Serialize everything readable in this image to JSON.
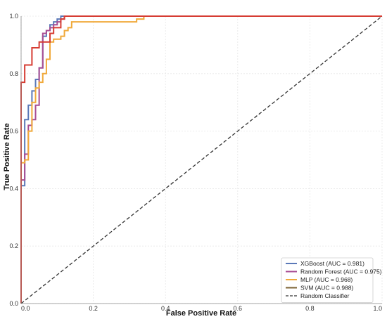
{
  "chart_data": {
    "type": "line",
    "title": "",
    "xlabel": "False Positive Rate",
    "ylabel": "True Positive Rate",
    "xlim": [
      0,
      1
    ],
    "ylim": [
      0,
      1
    ],
    "xticks": [
      "0.0",
      "0.2",
      "0.4",
      "0.6",
      "0.8",
      "1.0"
    ],
    "yticks": [
      "0.0",
      "0.2",
      "0.4",
      "0.6",
      "0.8",
      "1.0"
    ],
    "grid": true,
    "legend_position": "bottom-right",
    "series": [
      {
        "name": "XGBoost (AUC = 0.981)",
        "color": "#5b79b8",
        "points": [
          [
            0,
            0
          ],
          [
            0,
            0.41
          ],
          [
            0.01,
            0.41
          ],
          [
            0.01,
            0.64
          ],
          [
            0.02,
            0.64
          ],
          [
            0.02,
            0.69
          ],
          [
            0.03,
            0.69
          ],
          [
            0.03,
            0.74
          ],
          [
            0.04,
            0.74
          ],
          [
            0.04,
            0.78
          ],
          [
            0.05,
            0.78
          ],
          [
            0.05,
            0.82
          ],
          [
            0.06,
            0.82
          ],
          [
            0.06,
            0.93
          ],
          [
            0.07,
            0.93
          ],
          [
            0.07,
            0.95
          ],
          [
            0.08,
            0.95
          ],
          [
            0.08,
            0.97
          ],
          [
            0.09,
            0.97
          ],
          [
            0.09,
            0.98
          ],
          [
            0.1,
            0.98
          ],
          [
            0.1,
            0.99
          ],
          [
            0.11,
            0.99
          ],
          [
            0.11,
            1.0
          ],
          [
            1.0,
            1.0
          ]
        ]
      },
      {
        "name": "Random Forest (AUC = 0.975)",
        "color": "#a84d93",
        "points": [
          [
            0,
            0
          ],
          [
            0,
            0.43
          ],
          [
            0.01,
            0.43
          ],
          [
            0.01,
            0.52
          ],
          [
            0.02,
            0.52
          ],
          [
            0.02,
            0.62
          ],
          [
            0.03,
            0.62
          ],
          [
            0.03,
            0.64
          ],
          [
            0.04,
            0.64
          ],
          [
            0.04,
            0.69
          ],
          [
            0.05,
            0.69
          ],
          [
            0.05,
            0.82
          ],
          [
            0.06,
            0.82
          ],
          [
            0.06,
            0.94
          ],
          [
            0.07,
            0.94
          ],
          [
            0.07,
            0.95
          ],
          [
            0.08,
            0.95
          ],
          [
            0.08,
            0.96
          ],
          [
            0.09,
            0.96
          ],
          [
            0.09,
            0.97
          ],
          [
            0.1,
            0.97
          ],
          [
            0.1,
            0.98
          ],
          [
            0.11,
            0.98
          ],
          [
            0.11,
            0.99
          ],
          [
            0.12,
            0.99
          ],
          [
            0.12,
            1.0
          ],
          [
            1.0,
            1.0
          ]
        ]
      },
      {
        "name": "MLP (AUC = 0.968)",
        "color": "#f0a93a",
        "points": [
          [
            0,
            0
          ],
          [
            0,
            0.49
          ],
          [
            0.01,
            0.49
          ],
          [
            0.01,
            0.5
          ],
          [
            0.02,
            0.5
          ],
          [
            0.02,
            0.6
          ],
          [
            0.03,
            0.6
          ],
          [
            0.03,
            0.7
          ],
          [
            0.04,
            0.7
          ],
          [
            0.04,
            0.75
          ],
          [
            0.05,
            0.75
          ],
          [
            0.05,
            0.77
          ],
          [
            0.06,
            0.77
          ],
          [
            0.06,
            0.8
          ],
          [
            0.07,
            0.8
          ],
          [
            0.07,
            0.85
          ],
          [
            0.08,
            0.85
          ],
          [
            0.08,
            0.91
          ],
          [
            0.09,
            0.91
          ],
          [
            0.09,
            0.92
          ],
          [
            0.11,
            0.92
          ],
          [
            0.11,
            0.93
          ],
          [
            0.12,
            0.93
          ],
          [
            0.12,
            0.95
          ],
          [
            0.13,
            0.95
          ],
          [
            0.13,
            0.96
          ],
          [
            0.14,
            0.96
          ],
          [
            0.14,
            0.98
          ],
          [
            0.32,
            0.98
          ],
          [
            0.32,
            0.99
          ],
          [
            0.34,
            0.99
          ],
          [
            0.34,
            1.0
          ],
          [
            1.0,
            1.0
          ]
        ]
      },
      {
        "name": "SVM (AUC = 0.988)",
        "color": "#d63c33",
        "legend_color": "#7d6334",
        "points": [
          [
            0,
            0
          ],
          [
            0,
            0.77
          ],
          [
            0.01,
            0.77
          ],
          [
            0.01,
            0.83
          ],
          [
            0.03,
            0.83
          ],
          [
            0.03,
            0.89
          ],
          [
            0.05,
            0.89
          ],
          [
            0.05,
            0.91
          ],
          [
            0.08,
            0.91
          ],
          [
            0.08,
            0.94
          ],
          [
            0.09,
            0.94
          ],
          [
            0.09,
            0.96
          ],
          [
            0.11,
            0.96
          ],
          [
            0.11,
            0.99
          ],
          [
            0.12,
            0.99
          ],
          [
            0.12,
            1.0
          ],
          [
            1.0,
            1.0
          ]
        ]
      }
    ],
    "reference_line": {
      "name": "Random Classifier",
      "color": "#333333",
      "points": [
        [
          0,
          0
        ],
        [
          1,
          1
        ]
      ]
    }
  }
}
